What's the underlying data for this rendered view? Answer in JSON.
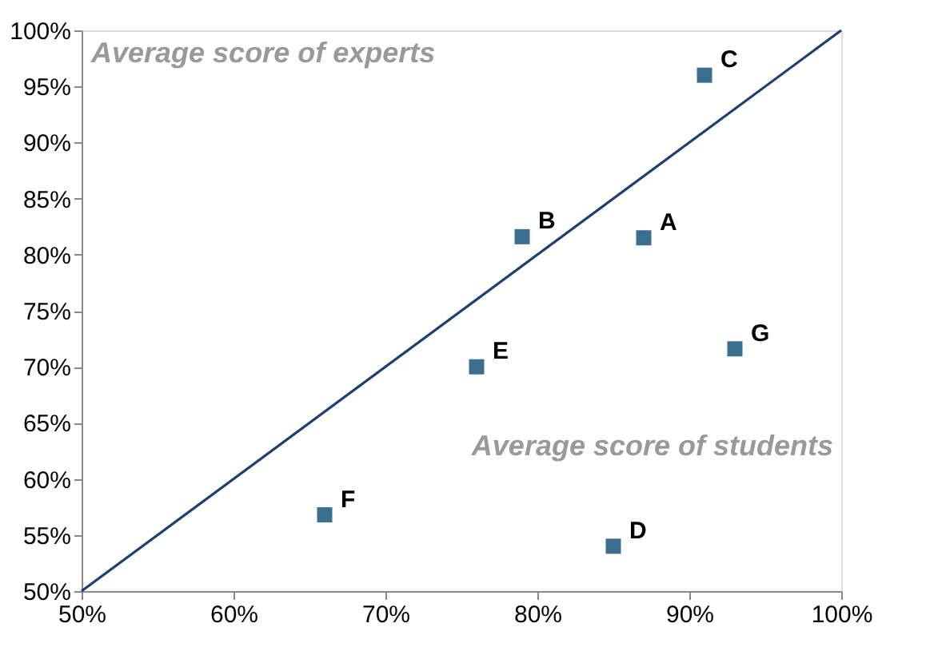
{
  "chart_data": {
    "type": "scatter",
    "xlabel": "Average score of students",
    "ylabel": "Average score of experts",
    "x": [
      87,
      79,
      91,
      85,
      76,
      66,
      93
    ],
    "series": [
      {
        "color": "#3b6e8f",
        "marker": "square",
        "values": [
          81.5,
          81.6,
          96,
          54,
          70,
          56.8,
          71.6
        ]
      },
      {
        "type": "line",
        "color": "#1f3d6e",
        "x": [
          50,
          100
        ],
        "values": [
          50,
          100
        ]
      }
    ],
    "annotations": [
      {
        "text": "A",
        "x": 87,
        "y": 81.5
      },
      {
        "text": "B",
        "x": 79,
        "y": 81.6
      },
      {
        "text": "C",
        "x": 91,
        "y": 96
      },
      {
        "text": "D",
        "x": 85,
        "y": 54
      },
      {
        "text": "E",
        "x": 76,
        "y": 70
      },
      {
        "text": "F",
        "x": 66,
        "y": 56.8
      },
      {
        "text": "G",
        "x": 93,
        "y": 71.6
      }
    ],
    "xlim": [
      50,
      100
    ],
    "ylim": [
      50,
      100
    ],
    "xticks": [
      {
        "value": 50,
        "label": "50%"
      },
      {
        "value": 60,
        "label": "60%"
      },
      {
        "value": 70,
        "label": "70%"
      },
      {
        "value": 80,
        "label": "80%"
      },
      {
        "value": 90,
        "label": "90%"
      },
      {
        "value": 100,
        "label": "100%"
      }
    ],
    "yticks": [
      {
        "value": 50,
        "label": "50%"
      },
      {
        "value": 55,
        "label": "55%"
      },
      {
        "value": 60,
        "label": "60%"
      },
      {
        "value": 65,
        "label": "65%"
      },
      {
        "value": 70,
        "label": "70%"
      },
      {
        "value": 75,
        "label": "75%"
      },
      {
        "value": 80,
        "label": "80%"
      },
      {
        "value": 85,
        "label": "85%"
      },
      {
        "value": 90,
        "label": "90%"
      },
      {
        "value": 95,
        "label": "95%"
      },
      {
        "value": 100,
        "label": "100%"
      }
    ],
    "grid": false
  }
}
